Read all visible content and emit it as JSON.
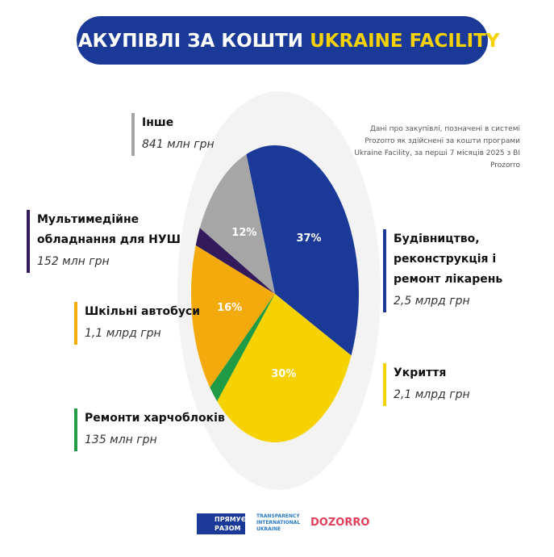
{
  "chart_data": {
    "type": "pie",
    "title": "ЗАКУПІВЛІ ЗА КОШТИ",
    "title_highlight": "UKRAINE FACILITY",
    "note": "Дані про закупівлі, позначені в системі Prozorro як здійснені за кошти програми Ukraine Facility, за перші 7 місяців 2025 з BI Prozorro",
    "categories": [
      "Будівництво, реконструкція і ремонт лікарень",
      "Укриття",
      "Ремонти харчоблоків",
      "Шкільні автобуси",
      "Мультимедійне обладнання для НУШ",
      "Інше"
    ],
    "amount_labels": [
      "2,5 млрд грн",
      "2,1 млрд грн",
      "135 млн грн",
      "1,1 млрд грн",
      "152 млн грн",
      "841 млн грн"
    ],
    "values": [
      37,
      30,
      2,
      16,
      2,
      12
    ],
    "value_labels": [
      "37%",
      "30%",
      null,
      "16%",
      null,
      "12%"
    ],
    "colors": [
      "#1b3a98",
      "#f6d200",
      "#1f9a45",
      "#f3aa0c",
      "#321a5c",
      "#a6a6a6"
    ],
    "logos": [
      "ПРЯМУЄМО РАЗОМ",
      "TRANSPARENCY INTERNATIONAL UKRAINE",
      "DOZORRO"
    ]
  }
}
